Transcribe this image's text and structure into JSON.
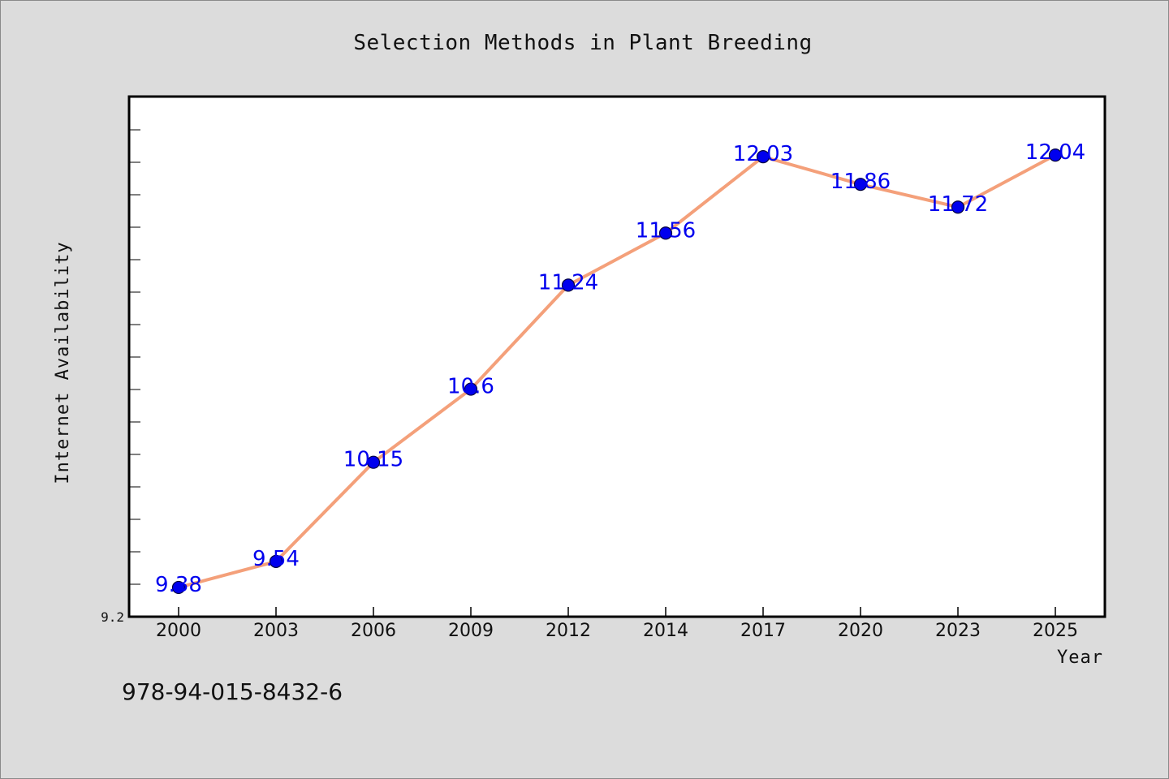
{
  "chart_data": {
    "type": "line",
    "title": "Selection Methods in Plant Breeding",
    "xlabel": "Year",
    "ylabel": "Internet Availability",
    "categories": [
      "2000",
      "2003",
      "2006",
      "2009",
      "2012",
      "2014",
      "2017",
      "2020",
      "2023",
      "2025"
    ],
    "series": [
      {
        "values": [
          9.38,
          9.54,
          10.15,
          10.6,
          11.24,
          11.56,
          12.03,
          11.86,
          11.72,
          12.04
        ],
        "labels": [
          "9.38",
          "9.54",
          "10.15",
          "10.6",
          "11.24",
          "11.56",
          "12.03",
          "11.86",
          "11.72",
          "12.04"
        ],
        "line_color": "#f4a07a",
        "marker_color": "#0000ee",
        "label_color": "#0000ee"
      }
    ],
    "ylim": [
      9.2,
      12.4
    ],
    "y_tick_label": "9.2",
    "grid": false,
    "legend": "none"
  },
  "footer": {
    "isbn": "978-94-015-8432-6"
  },
  "colors": {
    "background": "#dcdcdc",
    "plot_background": "#ffffff",
    "axis": "#000000"
  }
}
